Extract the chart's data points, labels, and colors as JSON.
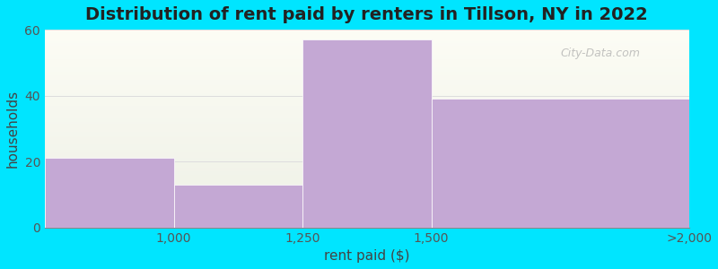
{
  "title": "Distribution of rent paid by renters in Tillson, NY in 2022",
  "xlabel": "rent paid ($)",
  "ylabel": "households",
  "bin_edges": [
    750,
    1000,
    1250,
    1500,
    2000
  ],
  "bar_values": [
    21,
    13,
    57,
    39
  ],
  "bar_color": "#c4a8d4",
  "ylim": [
    0,
    60
  ],
  "yticks": [
    0,
    20,
    40,
    60
  ],
  "xtick_positions": [
    1000,
    1250,
    1500,
    2000
  ],
  "xtick_labels": [
    "1,000",
    "1,250",
    "1,500",
    ">2,000"
  ],
  "background_color": "#00e5ff",
  "plot_bg_top": "#f5fdf0",
  "plot_bg_bottom": "#e8f8e8",
  "grid_color": "#dddddd",
  "title_fontsize": 14,
  "axis_label_fontsize": 11,
  "tick_fontsize": 10,
  "watermark_text": "City-Data.com",
  "watermark_color": "#aaaaaa"
}
